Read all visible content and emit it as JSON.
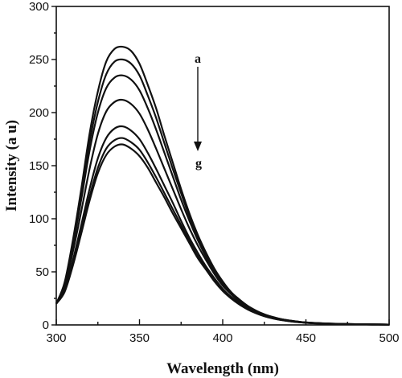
{
  "chart_data": {
    "type": "line",
    "title": "",
    "xlabel": "Wavelength (nm)",
    "ylabel": "Intensity (a u)",
    "xlim": [
      300,
      500
    ],
    "ylim": [
      0,
      300
    ],
    "xticks": [
      300,
      350,
      400,
      450,
      500
    ],
    "yticks": [
      0,
      50,
      100,
      150,
      200,
      250,
      300
    ],
    "grid": false,
    "x": [
      300,
      305,
      310,
      315,
      320,
      325,
      330,
      335,
      340,
      345,
      350,
      355,
      360,
      365,
      370,
      375,
      380,
      385,
      390,
      395,
      400,
      405,
      410,
      415,
      420,
      425,
      430,
      435,
      440,
      445,
      450,
      460,
      470,
      480,
      490,
      500
    ],
    "series": [
      {
        "values": [
          20,
          40,
          80,
          128,
          180,
          220,
          248,
          260,
          262,
          258,
          246,
          226,
          204,
          178,
          153,
          128,
          105,
          85,
          68,
          53,
          41,
          31,
          24,
          18,
          13.5,
          10,
          7.5,
          5.5,
          4.2,
          3.2,
          2.4,
          1.5,
          1,
          0.7,
          0.5,
          0.3
        ]
      },
      {
        "values": [
          20,
          39,
          78,
          124,
          172,
          210,
          236,
          248,
          250,
          246,
          235,
          216,
          195,
          171,
          147,
          124,
          102,
          83,
          67,
          52,
          40,
          31,
          23,
          17.5,
          13,
          9.8,
          7.3,
          5.4,
          4.1,
          3.1,
          2.3,
          1.4,
          1,
          0.7,
          0.5,
          0.3
        ]
      },
      {
        "values": [
          20,
          38,
          75,
          118,
          164,
          200,
          223,
          233,
          235,
          231,
          221,
          204,
          184,
          162,
          140,
          118,
          98,
          80,
          64,
          50,
          39,
          30,
          22.5,
          17,
          12.8,
          9.5,
          7.1,
          5.3,
          4,
          3,
          2.2,
          1.4,
          1,
          0.7,
          0.5,
          0.3
        ]
      },
      {
        "values": [
          20,
          36,
          69,
          107,
          147,
          180,
          201,
          210,
          212,
          208,
          199,
          184,
          166,
          147,
          128,
          109,
          91,
          75,
          61,
          48,
          37,
          29,
          22,
          16.5,
          12.4,
          9.2,
          6.9,
          5.1,
          3.9,
          2.9,
          2.2,
          1.3,
          0.9,
          0.6,
          0.4,
          0.3
        ]
      },
      {
        "values": [
          20,
          33,
          61,
          94,
          128,
          157,
          176,
          185,
          187,
          183,
          175,
          162,
          147,
          131,
          115,
          98,
          82,
          68,
          55,
          44,
          34,
          26.5,
          20.5,
          15.5,
          11.7,
          8.7,
          6.5,
          4.9,
          3.7,
          2.8,
          2.1,
          1.3,
          0.9,
          0.6,
          0.4,
          0.3
        ]
      },
      {
        "values": [
          20,
          32,
          58,
          89,
          121,
          148,
          166,
          174,
          176,
          172,
          165,
          153,
          139,
          124,
          109,
          94,
          79,
          65,
          53,
          42,
          33,
          25.5,
          19.7,
          15,
          11.3,
          8.4,
          6.3,
          4.7,
          3.6,
          2.7,
          2,
          1.2,
          0.8,
          0.6,
          0.4,
          0.3
        ]
      },
      {
        "values": [
          20,
          31,
          56,
          86,
          117,
          143,
          160,
          168,
          170,
          166,
          159,
          148,
          134,
          120,
          105,
          91,
          77,
          63,
          52,
          41,
          32,
          25,
          19.3,
          14.6,
          11,
          8.2,
          6.1,
          4.6,
          3.5,
          2.6,
          2,
          1.2,
          0.8,
          0.6,
          0.4,
          0.3
        ]
      }
    ],
    "annotations": {
      "arrow_top_label": "a",
      "arrow_bottom_label": "g"
    }
  }
}
